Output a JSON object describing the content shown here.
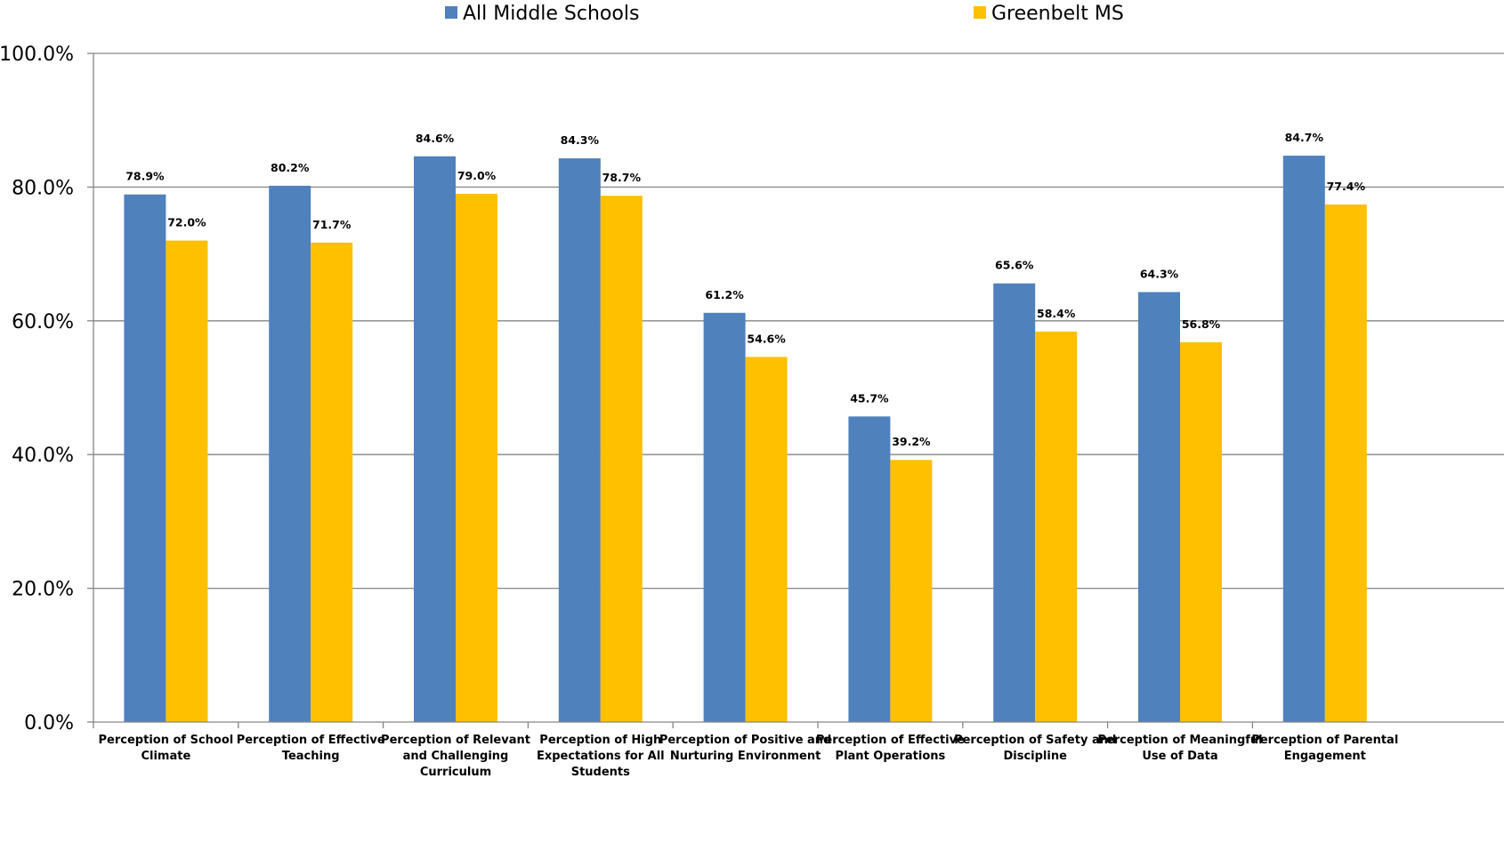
{
  "chart_data": {
    "type": "bar",
    "categories": [
      [
        "Perception of School",
        "Climate"
      ],
      [
        "Perception of Effective",
        "Teaching"
      ],
      [
        "Perception of Relevant",
        "and Challenging",
        "Curriculum"
      ],
      [
        "Perception of High",
        "Expectations for All",
        "Students"
      ],
      [
        "Perception of Positive and",
        "Nurturing Environment"
      ],
      [
        "Perception of Effective",
        "Plant Operations"
      ],
      [
        "Perception of Safety and",
        "Discipline"
      ],
      [
        "Perception of Meaningful",
        "Use of Data"
      ],
      [
        "Perception of Parental",
        "Engagement"
      ]
    ],
    "series": [
      {
        "name": "All Middle Schools",
        "color": "#4F81BD",
        "values": [
          78.9,
          80.2,
          84.6,
          84.3,
          61.2,
          45.7,
          65.6,
          64.3,
          84.7
        ],
        "labels": [
          "78.9%",
          "80.2%",
          "84.6%",
          "84.3%",
          "61.2%",
          "45.7%",
          "65.6%",
          "64.3%",
          "84.7%"
        ]
      },
      {
        "name": "Greenbelt MS",
        "color": "#FFC000",
        "values": [
          72.0,
          71.7,
          79.0,
          78.7,
          54.6,
          39.2,
          58.4,
          56.8,
          77.4
        ],
        "labels": [
          "72.0%",
          "71.7%",
          "79.0%",
          "78.7%",
          "54.6%",
          "39.2%",
          "58.4%",
          "56.8%",
          "77.4%"
        ]
      }
    ],
    "yticks": [
      0,
      20,
      40,
      60,
      80,
      100
    ],
    "ytick_labels": [
      "0.0%",
      "20.0%",
      "40.0%",
      "60.0%",
      "80.0%",
      "100.0%"
    ],
    "ylim": [
      0,
      100
    ],
    "grid": true,
    "legend": "top",
    "gridline_color": "#868686",
    "axis_color": "#868686"
  }
}
